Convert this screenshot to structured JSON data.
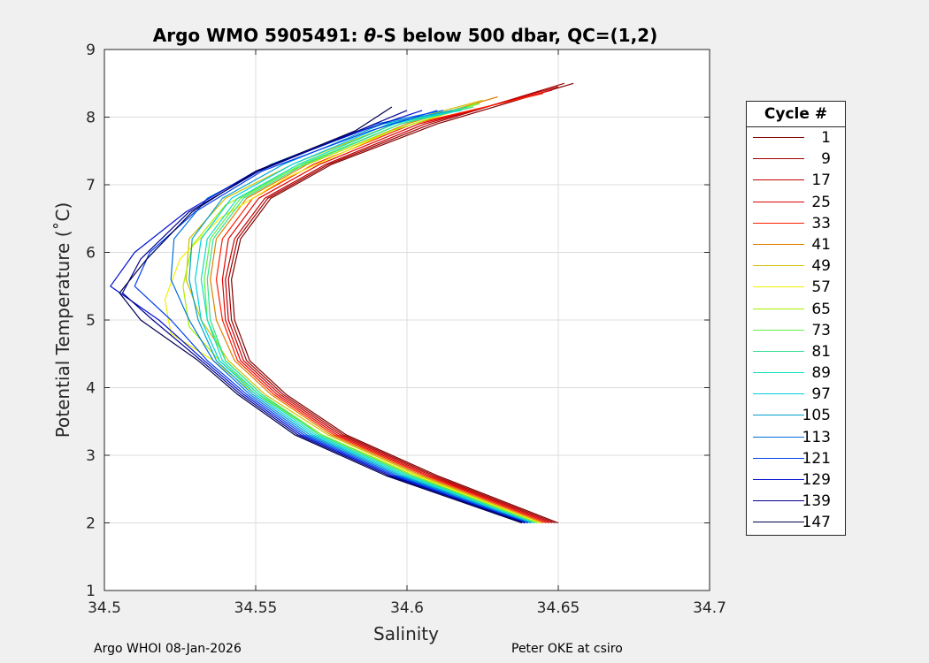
{
  "title_prefix": "Argo WMO 5905491: ",
  "title_symbol": "θ",
  "title_suffix": "-S below 500 dbar,  QC=(1,2)",
  "footer": {
    "left": "Argo WHOI 08-Jan-2026",
    "right": "Peter OKE at csiro"
  },
  "legend": {
    "title": "Cycle #",
    "items": [
      {
        "label": "1",
        "color": "#800000"
      },
      {
        "label": "9",
        "color": "#a00000"
      },
      {
        "label": "17",
        "color": "#c00000"
      },
      {
        "label": "25",
        "color": "#e00000"
      },
      {
        "label": "33",
        "color": "#ff2000"
      },
      {
        "label": "41",
        "color": "#e08000"
      },
      {
        "label": "49",
        "color": "#d0c000"
      },
      {
        "label": "57",
        "color": "#f0f000"
      },
      {
        "label": "65",
        "color": "#a8f000"
      },
      {
        "label": "73",
        "color": "#60f040"
      },
      {
        "label": "81",
        "color": "#30e090"
      },
      {
        "label": "89",
        "color": "#10e0c0"
      },
      {
        "label": "97",
        "color": "#00d0e0"
      },
      {
        "label": "105",
        "color": "#00a0d0"
      },
      {
        "label": "113",
        "color": "#0070e0"
      },
      {
        "label": "121",
        "color": "#0040f0"
      },
      {
        "label": "129",
        "color": "#0010d0"
      },
      {
        "label": "139",
        "color": "#000090"
      },
      {
        "label": "147",
        "color": "#000050"
      }
    ]
  },
  "chart_data": {
    "type": "line",
    "title": "Argo WMO 5905491: θ-S below 500 dbar,  QC=(1,2)",
    "xlabel": "Salinity",
    "ylabel": "Potential Temperature (˚C)",
    "xlim": [
      34.5,
      34.7
    ],
    "ylim": [
      1,
      9
    ],
    "xticks": [
      "34.5",
      "34.55",
      "34.6",
      "34.65",
      "34.7"
    ],
    "yticks": [
      "1",
      "2",
      "3",
      "4",
      "5",
      "6",
      "7",
      "8",
      "9"
    ],
    "grid": true,
    "legend_position": "outside-right",
    "series": [
      {
        "name": "1",
        "x": [
          34.65,
          34.61,
          34.58,
          34.56,
          34.548,
          34.543,
          34.542,
          34.545,
          34.555,
          34.575,
          34.61,
          34.655
        ],
        "y": [
          2.0,
          2.7,
          3.3,
          3.9,
          4.4,
          5.0,
          5.6,
          6.2,
          6.8,
          7.3,
          7.9,
          8.5
        ]
      },
      {
        "name": "9",
        "x": [
          34.649,
          34.609,
          34.579,
          34.559,
          34.547,
          34.542,
          34.541,
          34.544,
          34.554,
          34.574,
          34.608,
          34.652
        ],
        "y": [
          2.0,
          2.7,
          3.3,
          3.9,
          4.4,
          5.0,
          5.6,
          6.2,
          6.8,
          7.3,
          7.9,
          8.5
        ]
      },
      {
        "name": "17",
        "x": [
          34.648,
          34.608,
          34.578,
          34.558,
          34.546,
          34.541,
          34.54,
          34.543,
          34.553,
          34.573,
          34.606,
          34.65
        ],
        "y": [
          2.0,
          2.7,
          3.3,
          3.9,
          4.4,
          5.0,
          5.6,
          6.2,
          6.8,
          7.3,
          7.9,
          8.45
        ]
      },
      {
        "name": "25",
        "x": [
          34.647,
          34.607,
          34.577,
          34.557,
          34.545,
          34.54,
          34.539,
          34.541,
          34.551,
          34.571,
          34.604,
          34.648
        ],
        "y": [
          2.0,
          2.7,
          3.3,
          3.9,
          4.4,
          5.0,
          5.6,
          6.2,
          6.8,
          7.3,
          7.9,
          8.4
        ]
      },
      {
        "name": "33",
        "x": [
          34.646,
          34.606,
          34.576,
          34.556,
          34.544,
          34.539,
          34.537,
          34.539,
          34.549,
          34.569,
          34.602,
          34.645
        ],
        "y": [
          2.0,
          2.7,
          3.3,
          3.9,
          4.4,
          5.0,
          5.6,
          6.2,
          6.8,
          7.3,
          7.9,
          8.35
        ]
      },
      {
        "name": "41",
        "x": [
          34.645,
          34.605,
          34.575,
          34.555,
          34.543,
          34.537,
          34.535,
          34.537,
          34.547,
          34.567,
          34.6,
          34.63
        ],
        "y": [
          2.0,
          2.7,
          3.3,
          3.9,
          4.4,
          5.0,
          5.6,
          6.2,
          6.8,
          7.3,
          7.9,
          8.3
        ]
      },
      {
        "name": "49",
        "x": [
          34.644,
          34.604,
          34.574,
          34.553,
          34.541,
          34.532,
          34.527,
          34.528,
          34.54,
          34.562,
          34.596,
          34.625
        ],
        "y": [
          2.0,
          2.7,
          3.3,
          3.9,
          4.4,
          5.0,
          5.6,
          6.2,
          6.8,
          7.3,
          7.9,
          8.25
        ]
      },
      {
        "name": "57",
        "x": [
          34.644,
          34.603,
          34.572,
          34.55,
          34.536,
          34.522,
          34.52,
          34.525,
          34.538,
          34.56,
          34.595,
          34.624
        ],
        "y": [
          2.0,
          2.7,
          3.3,
          3.9,
          4.4,
          4.8,
          5.3,
          5.9,
          6.5,
          7.1,
          7.8,
          8.2
        ]
      },
      {
        "name": "65",
        "x": [
          34.643,
          34.602,
          34.572,
          34.551,
          34.538,
          34.528,
          34.526,
          34.529,
          34.54,
          34.561,
          34.595,
          34.623
        ],
        "y": [
          2.0,
          2.7,
          3.3,
          3.9,
          4.4,
          4.9,
          5.5,
          6.1,
          6.7,
          7.2,
          7.8,
          8.2
        ]
      },
      {
        "name": "73",
        "x": [
          34.643,
          34.602,
          34.572,
          34.552,
          34.54,
          34.534,
          34.533,
          34.535,
          34.545,
          34.565,
          34.598,
          34.624
        ],
        "y": [
          2.0,
          2.7,
          3.3,
          3.9,
          4.4,
          5.0,
          5.6,
          6.2,
          6.8,
          7.3,
          7.9,
          8.2
        ]
      },
      {
        "name": "81",
        "x": [
          34.642,
          34.601,
          34.571,
          34.552,
          34.54,
          34.535,
          34.534,
          34.536,
          34.546,
          34.566,
          34.598,
          34.622
        ],
        "y": [
          2.0,
          2.7,
          3.3,
          3.9,
          4.4,
          5.0,
          5.6,
          6.2,
          6.8,
          7.3,
          7.9,
          8.15
        ]
      },
      {
        "name": "89",
        "x": [
          34.642,
          34.6,
          34.57,
          34.551,
          34.539,
          34.534,
          34.532,
          34.534,
          34.544,
          34.564,
          34.596,
          34.62
        ],
        "y": [
          2.0,
          2.7,
          3.3,
          3.9,
          4.4,
          5.0,
          5.6,
          6.2,
          6.8,
          7.3,
          7.9,
          8.15
        ]
      },
      {
        "name": "97",
        "x": [
          34.641,
          34.599,
          34.569,
          34.55,
          34.538,
          34.532,
          34.53,
          34.532,
          34.542,
          34.562,
          34.594,
          34.618
        ],
        "y": [
          2.0,
          2.7,
          3.3,
          3.9,
          4.4,
          5.0,
          5.6,
          6.2,
          6.8,
          7.3,
          7.9,
          8.1
        ]
      },
      {
        "name": "105",
        "x": [
          34.641,
          34.598,
          34.568,
          34.549,
          34.537,
          34.531,
          34.528,
          34.529,
          34.539,
          34.559,
          34.592,
          34.615
        ],
        "y": [
          2.0,
          2.7,
          3.3,
          3.9,
          4.4,
          5.0,
          5.6,
          6.2,
          6.8,
          7.3,
          7.9,
          8.1
        ]
      },
      {
        "name": "113",
        "x": [
          34.64,
          34.597,
          34.567,
          34.548,
          34.536,
          34.528,
          34.522,
          34.523,
          34.534,
          34.555,
          34.59,
          34.612
        ],
        "y": [
          2.0,
          2.7,
          3.3,
          3.9,
          4.4,
          5.0,
          5.6,
          6.2,
          6.8,
          7.3,
          7.9,
          8.1
        ]
      },
      {
        "name": "121",
        "x": [
          34.64,
          34.596,
          34.566,
          34.547,
          34.534,
          34.522,
          34.51,
          34.515,
          34.53,
          34.552,
          34.588,
          34.61
        ],
        "y": [
          2.0,
          2.7,
          3.3,
          3.9,
          4.4,
          5.0,
          5.5,
          6.0,
          6.6,
          7.2,
          7.8,
          8.1
        ]
      },
      {
        "name": "129",
        "x": [
          34.639,
          34.595,
          34.565,
          34.546,
          34.533,
          34.518,
          34.502,
          34.51,
          34.527,
          34.55,
          34.585,
          34.605
        ],
        "y": [
          2.0,
          2.7,
          3.3,
          3.9,
          4.4,
          5.0,
          5.5,
          6.0,
          6.6,
          7.2,
          7.8,
          8.1
        ]
      },
      {
        "name": "139",
        "x": [
          34.639,
          34.594,
          34.564,
          34.545,
          34.532,
          34.516,
          34.506,
          34.512,
          34.528,
          34.551,
          34.584,
          34.6
        ],
        "y": [
          2.0,
          2.7,
          3.3,
          3.9,
          4.4,
          5.0,
          5.4,
          5.9,
          6.6,
          7.2,
          7.8,
          8.1
        ]
      },
      {
        "name": "147",
        "x": [
          34.638,
          34.593,
          34.563,
          34.544,
          34.531,
          34.512,
          34.505,
          34.514,
          34.529,
          34.55,
          34.583,
          34.595
        ],
        "y": [
          2.0,
          2.7,
          3.3,
          3.9,
          4.4,
          5.0,
          5.4,
          5.9,
          6.6,
          7.2,
          7.8,
          8.15
        ]
      }
    ]
  }
}
